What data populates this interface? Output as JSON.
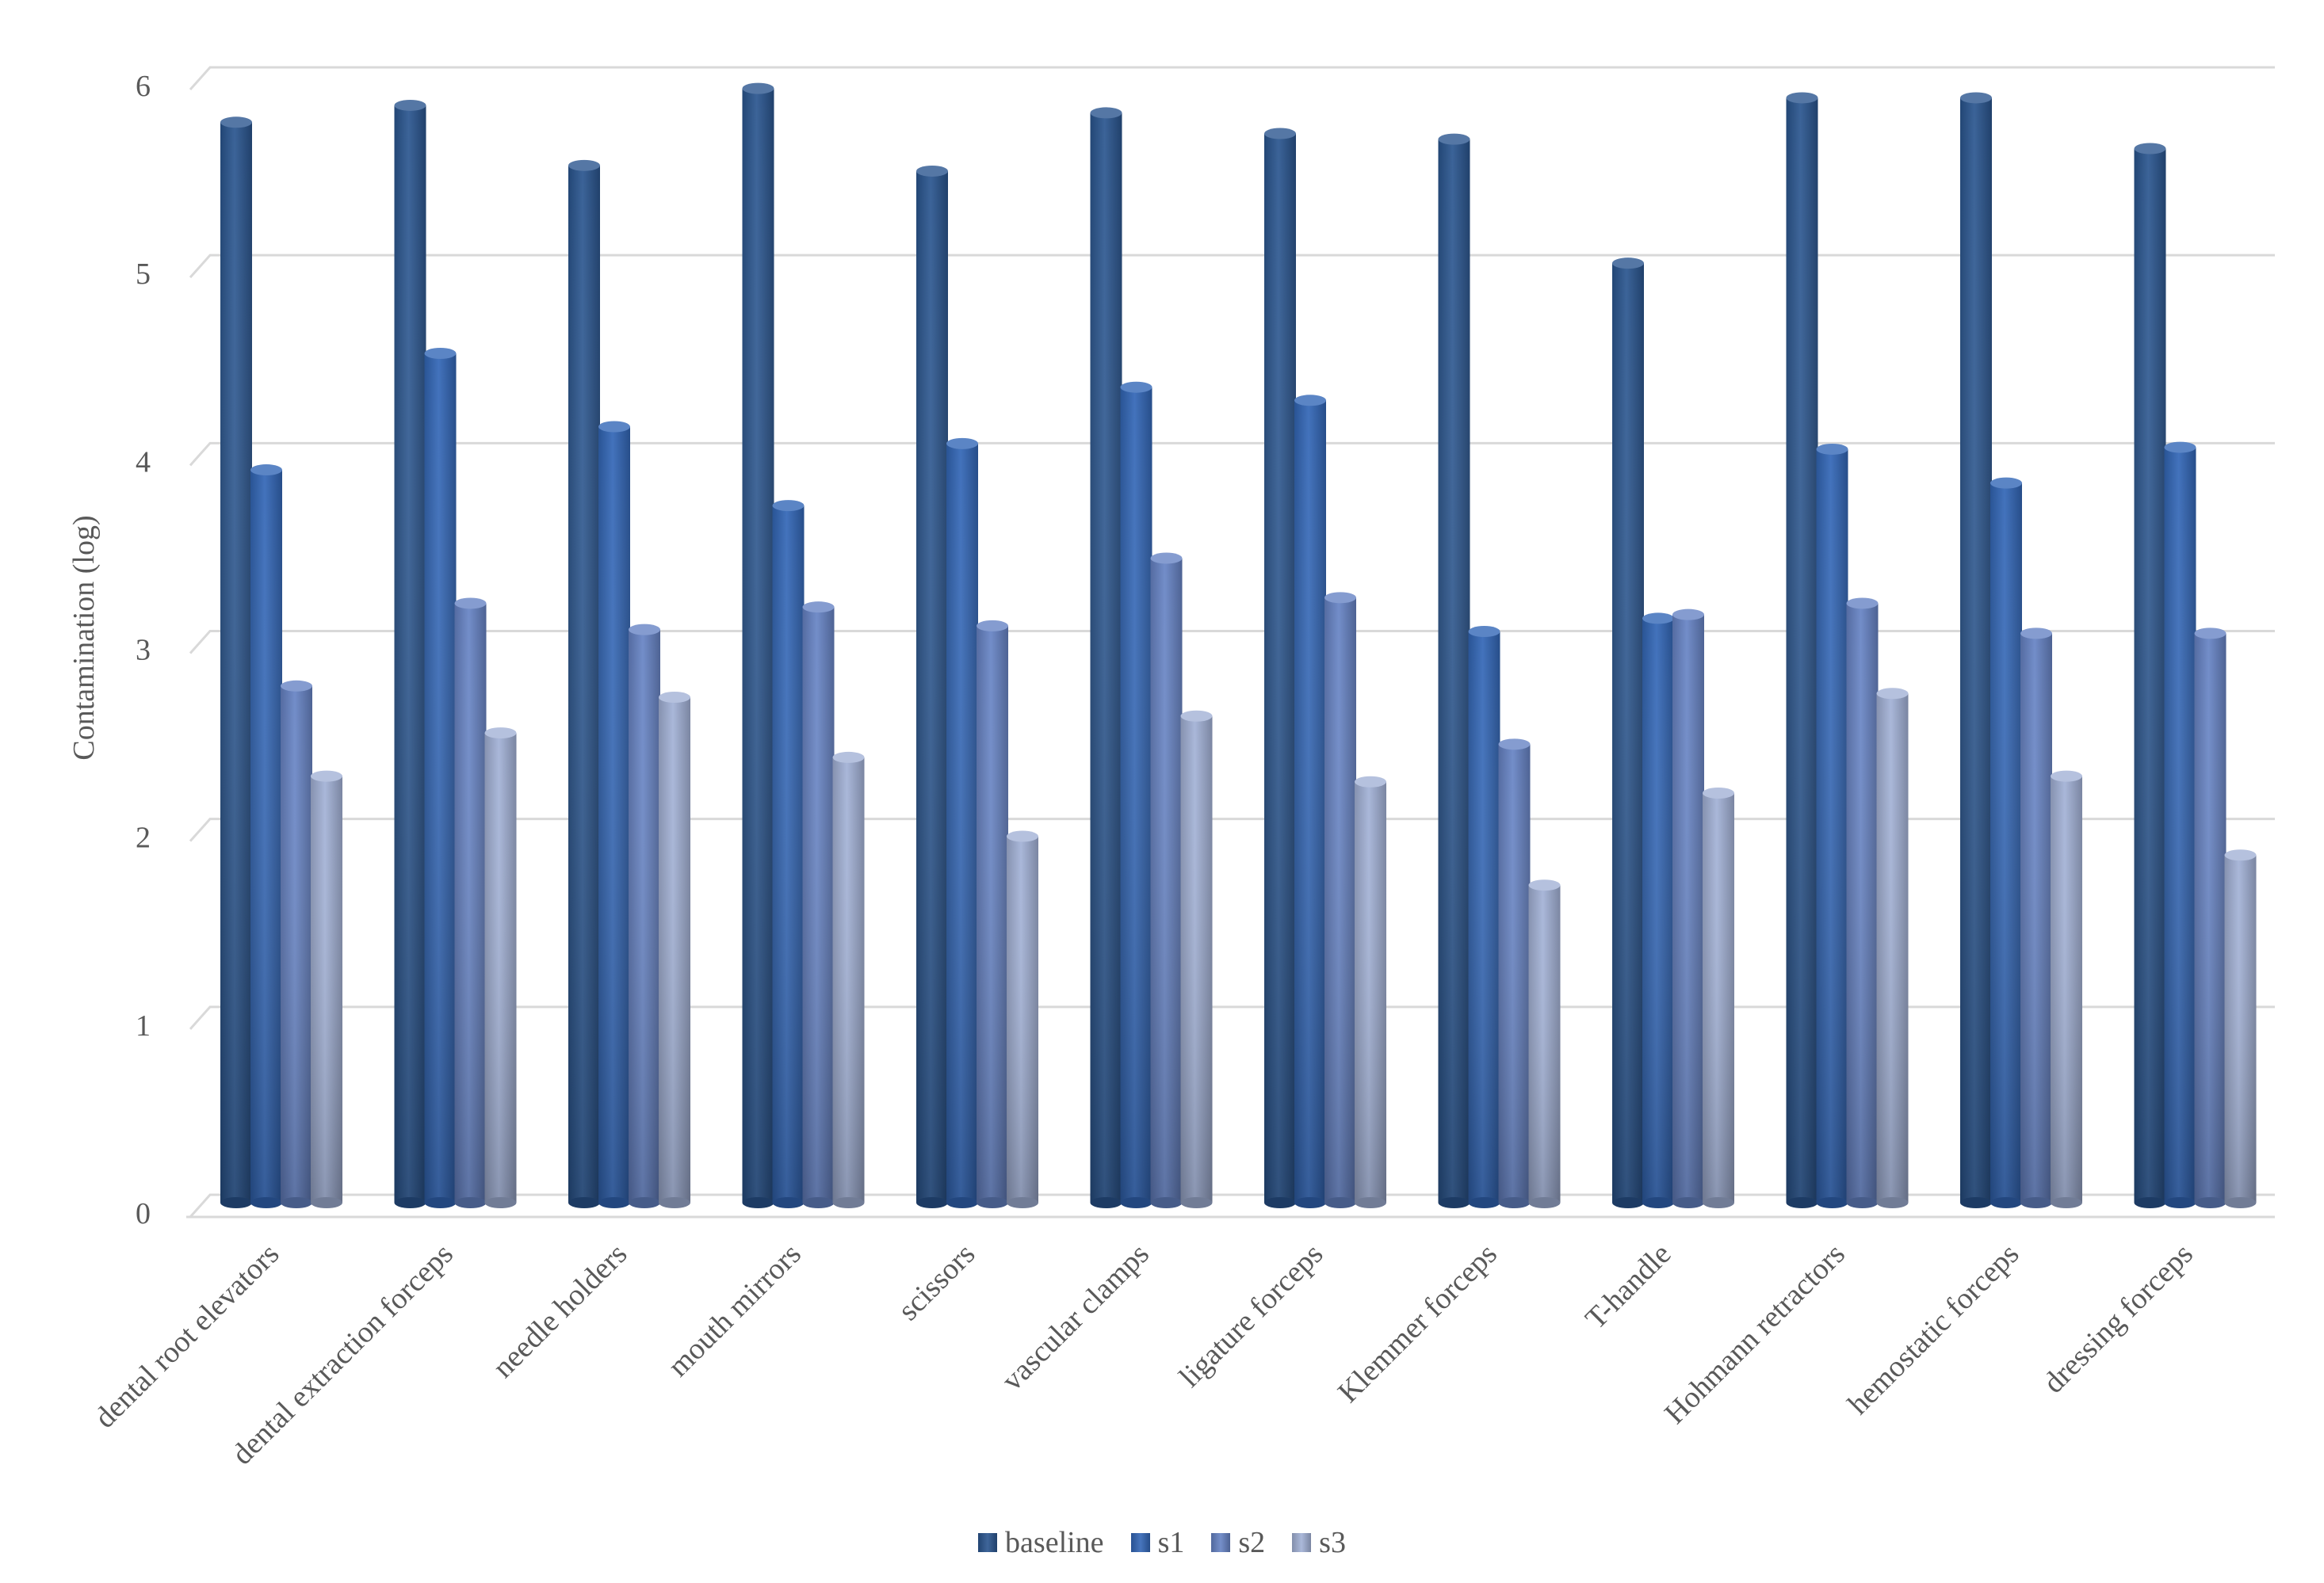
{
  "chart_data": {
    "type": "bar",
    "title": "",
    "xlabel": "",
    "ylabel": "Contamination (log)",
    "ylim": [
      0,
      6
    ],
    "yticks": [
      0,
      1,
      2,
      3,
      4,
      5,
      6
    ],
    "grid": true,
    "legend_position": "bottom",
    "categories": [
      "dental root elevators",
      "dental extraction forceps",
      "needle holders",
      "mouth mirrors",
      "scissors",
      "vascular clamps",
      "ligature forceps",
      "Klemmer forceps",
      "T-handle",
      "Hohmann retractors",
      "hemostatic forceps",
      "dressing forceps"
    ],
    "series": [
      {
        "name": "baseline",
        "color": "#2a558f",
        "values": [
          5.75,
          5.84,
          5.52,
          5.93,
          5.49,
          5.8,
          5.69,
          5.66,
          5.0,
          5.88,
          5.88,
          5.61
        ]
      },
      {
        "name": "s1",
        "color": "#3266b6",
        "values": [
          3.9,
          4.52,
          4.13,
          3.71,
          4.04,
          4.34,
          4.27,
          3.04,
          3.11,
          4.01,
          3.83,
          4.02
        ]
      },
      {
        "name": "s2",
        "color": "#6683c4",
        "values": [
          2.75,
          3.19,
          3.05,
          3.17,
          3.07,
          3.43,
          3.22,
          2.44,
          3.13,
          3.19,
          3.03,
          3.03
        ]
      },
      {
        "name": "s3",
        "color": "#a2b1d6",
        "values": [
          2.27,
          2.5,
          2.69,
          2.37,
          1.95,
          2.59,
          2.24,
          1.69,
          2.18,
          2.71,
          2.27,
          1.85
        ]
      }
    ]
  }
}
